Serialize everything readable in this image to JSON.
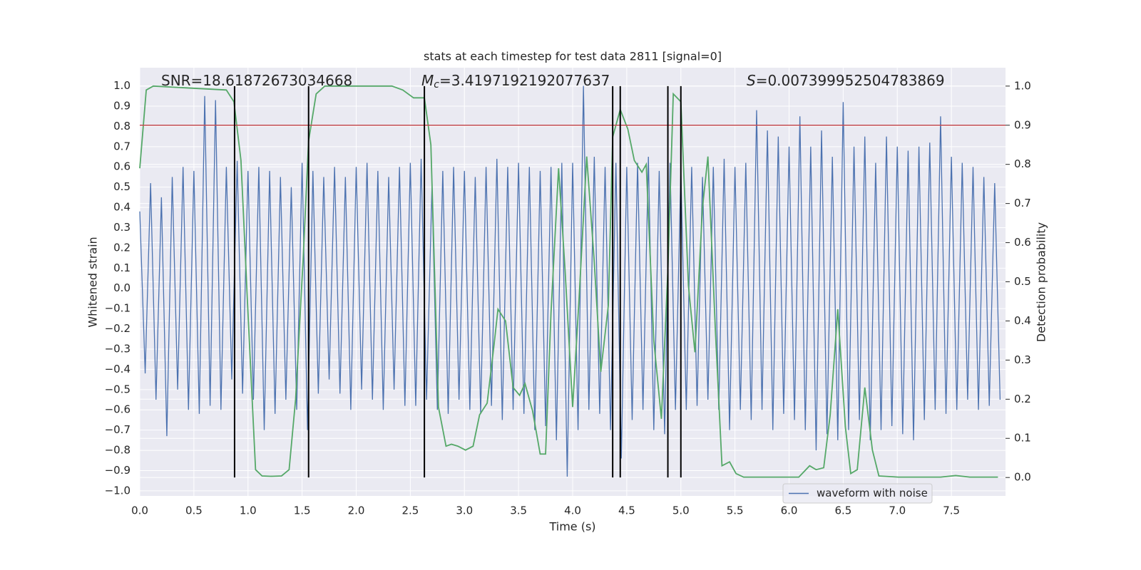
{
  "chart_data": {
    "type": "line",
    "title": "stats at each timestep for test data 2811 [signal=0]",
    "xlabel": "Time (s)",
    "ylabel": "Whitened strain",
    "y2label": "Detection probability",
    "annotations": [
      {
        "text": "SNR=18.61872673034668"
      },
      {
        "symbol": "M",
        "subscript": "c",
        "text": "=3.4197192192077637"
      },
      {
        "symbol": "S",
        "text": "=0.007399952504783869"
      }
    ],
    "xlim": [
      0,
      8
    ],
    "xticks": [
      {
        "value": 0,
        "label": "0.0"
      },
      0.5,
      {
        "value": 1,
        "label": "1.0"
      },
      1.5,
      {
        "value": 2,
        "label": "2.0"
      },
      2.5,
      {
        "value": 3,
        "label": "3.0"
      },
      3.5,
      {
        "value": 4,
        "label": "4.0"
      },
      4.5,
      {
        "value": 5,
        "label": "5.0"
      },
      5.5,
      {
        "value": 6,
        "label": "6.0"
      },
      6.5,
      {
        "value": 7,
        "label": "7.0"
      },
      7.5
    ],
    "ylim": [
      -1.025,
      1.09
    ],
    "yticks": [
      {
        "value": -1,
        "label": "−1.0"
      },
      {
        "value": -0.9,
        "label": "−0.9"
      },
      {
        "value": -0.8,
        "label": "−0.8"
      },
      {
        "value": -0.7,
        "label": "−0.7"
      },
      {
        "value": -0.6,
        "label": "−0.6"
      },
      {
        "value": -0.5,
        "label": "−0.5"
      },
      {
        "value": -0.4,
        "label": "−0.4"
      },
      {
        "value": -0.3,
        "label": "−0.3"
      },
      {
        "value": -0.2,
        "label": "−0.2"
      },
      {
        "value": -0.1,
        "label": "−0.1"
      },
      {
        "value": 0,
        "label": "0.0"
      },
      0.1,
      0.2,
      0.3,
      0.4,
      0.5,
      0.6,
      0.7,
      0.8,
      0.9,
      {
        "value": 1,
        "label": "1.0"
      }
    ],
    "y2lim": [
      -0.047,
      1.047
    ],
    "y2ticks": [
      {
        "value": 0,
        "label": "0.0"
      },
      0.1,
      0.2,
      0.3,
      0.4,
      0.5,
      0.6,
      0.7,
      0.8,
      0.9,
      {
        "value": 1,
        "label": "1.0"
      }
    ],
    "grid": true,
    "legend": "lower right",
    "series": [
      {
        "name": "waveform with noise",
        "color": "#4c72b0",
        "axis": "y",
        "x": [
          0,
          0.05,
          0.1,
          0.15,
          0.2,
          0.25,
          0.3,
          0.35,
          0.4,
          0.45,
          0.5,
          0.55,
          0.6,
          0.65,
          0.7,
          0.75,
          0.8,
          0.85,
          0.9,
          0.95,
          1,
          1.05,
          1.1,
          1.15,
          1.2,
          1.25,
          1.3,
          1.35,
          1.4,
          1.45,
          1.5,
          1.55,
          1.6,
          1.65,
          1.7,
          1.75,
          1.8,
          1.85,
          1.9,
          1.95,
          2,
          2.05,
          2.1,
          2.15,
          2.2,
          2.25,
          2.3,
          2.35,
          2.4,
          2.45,
          2.5,
          2.55,
          2.6,
          2.65,
          2.7,
          2.75,
          2.8,
          2.85,
          2.9,
          2.95,
          3,
          3.05,
          3.1,
          3.15,
          3.2,
          3.25,
          3.3,
          3.35,
          3.4,
          3.45,
          3.5,
          3.55,
          3.6,
          3.65,
          3.7,
          3.75,
          3.8,
          3.85,
          3.9,
          3.95,
          4,
          4.05,
          4.1,
          4.15,
          4.2,
          4.25,
          4.3,
          4.35,
          4.4,
          4.45,
          4.5,
          4.55,
          4.6,
          4.65,
          4.7,
          4.75,
          4.8,
          4.85,
          4.9,
          4.95,
          5,
          5.05,
          5.1,
          5.15,
          5.2,
          5.25,
          5.3,
          5.35,
          5.4,
          5.45,
          5.5,
          5.55,
          5.6,
          5.65,
          5.7,
          5.75,
          5.8,
          5.85,
          5.9,
          5.95,
          6,
          6.05,
          6.1,
          6.15,
          6.2,
          6.25,
          6.3,
          6.35,
          6.4,
          6.45,
          6.5,
          6.55,
          6.6,
          6.65,
          6.7,
          6.75,
          6.8,
          6.85,
          6.9,
          6.95,
          7,
          7.05,
          7.1,
          7.15,
          7.2,
          7.25,
          7.3,
          7.35,
          7.4,
          7.45,
          7.5,
          7.55,
          7.6,
          7.65,
          7.7,
          7.75,
          7.8,
          7.85,
          7.9,
          7.95
        ],
        "values": [
          0.38,
          -0.42,
          0.52,
          -0.55,
          0.45,
          -0.73,
          0.55,
          -0.5,
          0.6,
          -0.6,
          0.58,
          -0.62,
          0.95,
          -0.58,
          0.93,
          -0.6,
          0.6,
          -0.45,
          0.63,
          -0.52,
          0.58,
          -0.55,
          0.6,
          -0.7,
          0.58,
          -0.62,
          0.55,
          -0.55,
          0.5,
          -0.6,
          0.62,
          -0.7,
          0.58,
          -0.52,
          0.55,
          -0.45,
          0.6,
          -0.52,
          0.55,
          -0.6,
          0.6,
          -0.5,
          0.62,
          -0.55,
          0.58,
          -0.6,
          0.55,
          -0.5,
          0.6,
          -0.58,
          0.62,
          -0.58,
          0.64,
          -0.55,
          0.5,
          -0.6,
          0.58,
          -0.62,
          0.6,
          -0.55,
          0.58,
          -0.6,
          0.55,
          -0.62,
          0.6,
          -0.58,
          0.64,
          -0.65,
          0.6,
          -0.6,
          0.62,
          -0.62,
          0.6,
          -0.7,
          0.58,
          -0.68,
          0.6,
          -0.75,
          0.62,
          -0.93,
          0.62,
          -0.7,
          1.0,
          -0.6,
          0.65,
          -0.62,
          0.6,
          -0.7,
          0.62,
          -0.84,
          0.6,
          -0.65,
          0.62,
          -0.6,
          0.65,
          -0.7,
          0.58,
          -0.72,
          0.62,
          -0.6,
          0.58,
          -0.6,
          0.6,
          -0.58,
          0.55,
          -0.55,
          0.6,
          -0.6,
          0.64,
          -0.7,
          0.6,
          -0.6,
          0.62,
          -0.65,
          0.88,
          -0.6,
          0.78,
          -0.7,
          0.75,
          -0.62,
          0.7,
          -0.65,
          0.85,
          -0.7,
          0.7,
          -0.8,
          0.78,
          -0.72,
          0.65,
          -0.75,
          0.92,
          -0.7,
          0.7,
          -0.65,
          0.75,
          -0.75,
          0.62,
          -0.7,
          0.75,
          -0.68,
          0.7,
          -0.72,
          0.68,
          -0.75,
          0.7,
          -0.65,
          0.72,
          -0.6,
          0.85,
          -0.62,
          0.65,
          -0.6,
          0.62,
          -0.55,
          0.6,
          -0.6,
          0.55,
          -0.58,
          0.52,
          -0.55
        ]
      },
      {
        "color": "#55a868",
        "axis": "y2",
        "x": [
          0,
          0.06,
          0.125,
          0.8,
          0.87,
          0.935,
          1.0,
          1.07,
          1.13,
          1.21,
          1.31,
          1.38,
          1.44,
          1.51,
          1.56,
          1.63,
          1.71,
          2.0,
          2.1,
          2.33,
          2.43,
          2.53,
          2.63,
          2.69,
          2.76,
          2.83,
          2.88,
          2.94,
          3.01,
          3.08,
          3.14,
          3.21,
          3.27,
          3.31,
          3.38,
          3.45,
          3.51,
          3.56,
          3.63,
          3.7,
          3.75,
          3.8,
          3.87,
          3.93,
          4.0,
          4.06,
          4.13,
          4.2,
          4.26,
          4.33,
          4.37,
          4.44,
          4.51,
          4.57,
          4.64,
          4.68,
          4.75,
          4.82,
          4.88,
          4.93,
          5.0,
          5.07,
          5.13,
          5.2,
          5.25,
          5.32,
          5.38,
          5.45,
          5.51,
          5.58,
          5.82,
          6.09,
          6.19,
          6.25,
          6.32,
          6.38,
          6.45,
          6.52,
          6.57,
          6.63,
          6.7,
          6.77,
          6.83,
          7.01,
          7.4,
          7.54,
          7.67,
          7.93
        ],
        "values": [
          0.79,
          0.99,
          1.0,
          0.99,
          0.96,
          0.81,
          0.42,
          0.02,
          0.004,
          0.003,
          0.004,
          0.02,
          0.2,
          0.56,
          0.86,
          0.98,
          1.0,
          1.0,
          1.0,
          1.0,
          0.99,
          0.97,
          0.97,
          0.85,
          0.18,
          0.08,
          0.085,
          0.08,
          0.07,
          0.08,
          0.16,
          0.19,
          0.33,
          0.43,
          0.4,
          0.23,
          0.21,
          0.24,
          0.17,
          0.06,
          0.06,
          0.42,
          0.79,
          0.53,
          0.18,
          0.46,
          0.82,
          0.55,
          0.27,
          0.44,
          0.87,
          0.94,
          0.89,
          0.81,
          0.78,
          0.8,
          0.35,
          0.15,
          0.53,
          0.98,
          0.96,
          0.49,
          0.32,
          0.69,
          0.82,
          0.37,
          0.03,
          0.04,
          0.01,
          0.001,
          0.001,
          0.001,
          0.03,
          0.02,
          0.025,
          0.16,
          0.43,
          0.13,
          0.01,
          0.02,
          0.23,
          0.07,
          0.004,
          0.001,
          0.001,
          0.005,
          0.001,
          0.001
        ]
      }
    ],
    "hline": {
      "y": 0.9,
      "axis": "y2",
      "color": "#c44e52"
    },
    "vlines": {
      "x": [
        0.876,
        1.56,
        2.63,
        4.37,
        4.44,
        4.88,
        5.0
      ],
      "ymin": 0,
      "ymax": 1,
      "axis": "y2",
      "color": "#000000"
    }
  }
}
